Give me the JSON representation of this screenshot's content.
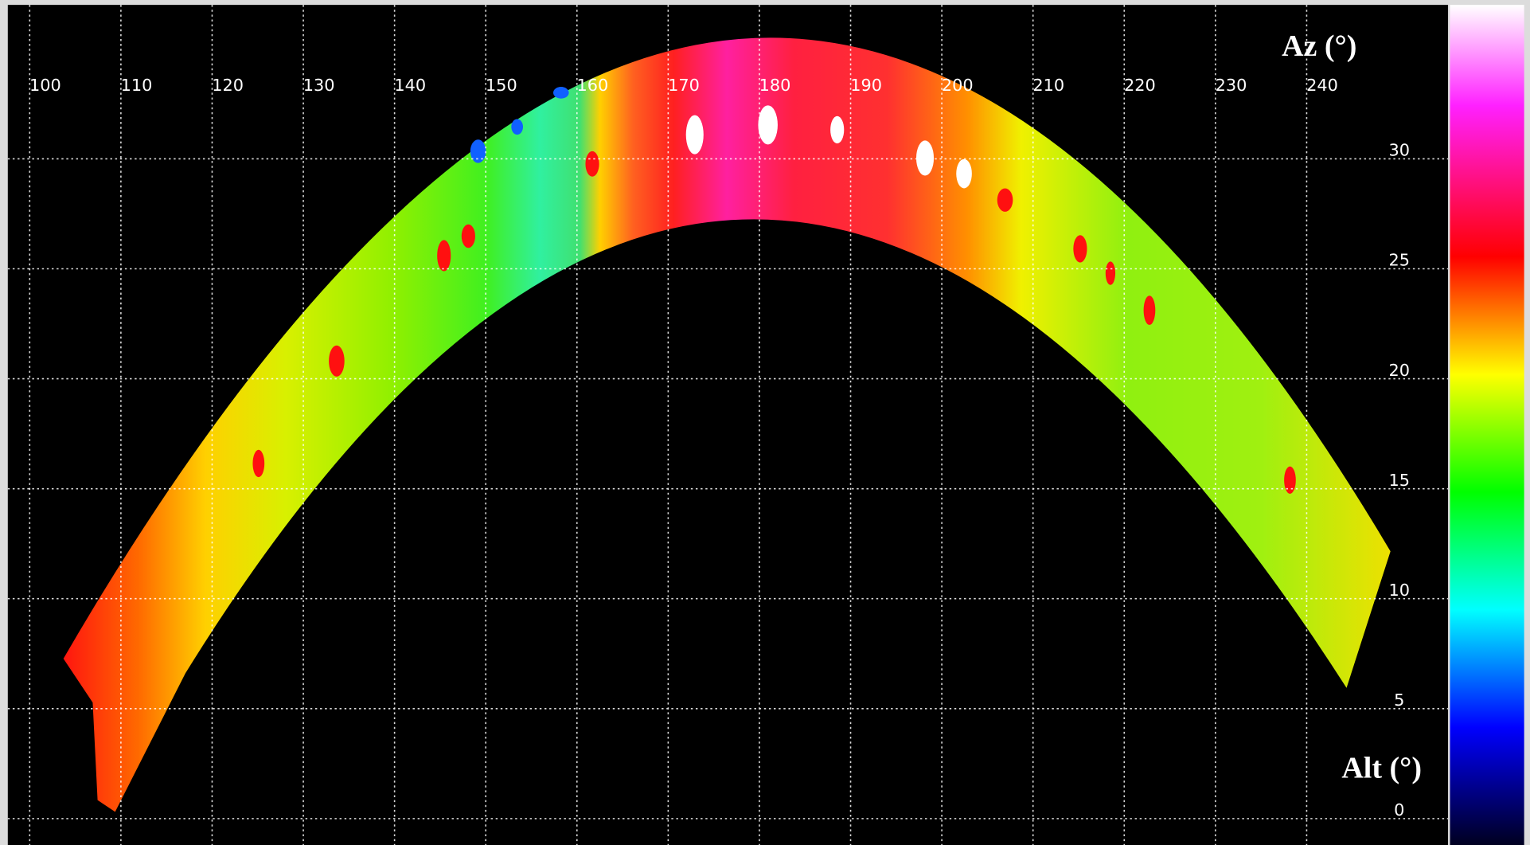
{
  "chart_data": {
    "type": "heatmap",
    "x_label": "Az (°)",
    "y_label": "Alt (°)",
    "xlim": [
      97.6,
      255.5
    ],
    "ylim": [
      -1.2,
      37
    ],
    "xticks": [
      100,
      110,
      120,
      130,
      140,
      150,
      160,
      170,
      180,
      190,
      200,
      210,
      220,
      230,
      240
    ],
    "yticks": [
      0,
      5,
      10,
      15,
      20,
      25,
      30
    ],
    "grid": true
  }
}
